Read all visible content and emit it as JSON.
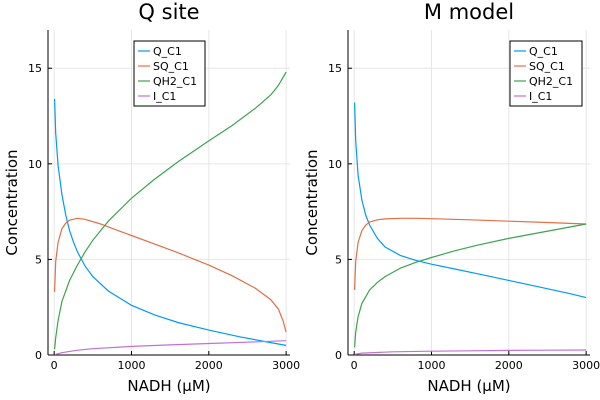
{
  "chart_data": [
    {
      "type": "line",
      "title": "Q site",
      "xlabel": "NADH (μM)",
      "ylabel": "Concentration",
      "xlim": [
        -80,
        3050
      ],
      "ylim": [
        0,
        17
      ],
      "xticks": [
        0,
        1000,
        2000,
        3000
      ],
      "yticks": [
        0,
        5,
        10,
        15
      ],
      "grid": true,
      "legend_position": "top-right",
      "series": [
        {
          "name": "Q_C1",
          "color": "#009af9",
          "x": [
            5,
            20,
            50,
            100,
            150,
            200,
            250,
            300,
            400,
            500,
            700,
            1000,
            1300,
            1600,
            2000,
            2400,
            2800,
            3000
          ],
          "y": [
            13.4,
            11.6,
            9.9,
            8.4,
            7.3,
            6.5,
            5.9,
            5.4,
            4.65,
            4.1,
            3.35,
            2.6,
            2.1,
            1.7,
            1.3,
            0.95,
            0.65,
            0.5
          ]
        },
        {
          "name": "SQ_C1",
          "color": "#e26f46",
          "x": [
            5,
            20,
            50,
            100,
            150,
            200,
            300,
            400,
            600,
            800,
            1000,
            1300,
            1600,
            2000,
            2300,
            2600,
            2800,
            2900,
            2960,
            3000
          ],
          "y": [
            3.3,
            4.9,
            5.9,
            6.6,
            6.9,
            7.05,
            7.15,
            7.1,
            6.85,
            6.55,
            6.25,
            5.8,
            5.35,
            4.7,
            4.15,
            3.5,
            2.9,
            2.4,
            1.8,
            1.2
          ]
        },
        {
          "name": "QH2_C1",
          "color": "#3da44d",
          "x": [
            5,
            20,
            50,
            100,
            200,
            300,
            400,
            500,
            700,
            1000,
            1300,
            1600,
            2000,
            2300,
            2600,
            2800,
            2900,
            3000
          ],
          "y": [
            0.3,
            0.9,
            1.8,
            2.8,
            3.9,
            4.7,
            5.4,
            6.0,
            7.0,
            8.2,
            9.2,
            10.1,
            11.2,
            12.0,
            12.9,
            13.6,
            14.1,
            14.8
          ]
        },
        {
          "name": "I_C1",
          "color": "#c271d2",
          "x": [
            5,
            100,
            300,
            500,
            1000,
            1500,
            2000,
            2500,
            3000
          ],
          "y": [
            0.02,
            0.12,
            0.25,
            0.33,
            0.45,
            0.53,
            0.6,
            0.67,
            0.75
          ]
        }
      ]
    },
    {
      "type": "line",
      "title": "M model",
      "xlabel": "NADH (μM)",
      "ylabel": "Concentration",
      "xlim": [
        -80,
        3050
      ],
      "ylim": [
        0,
        17
      ],
      "xticks": [
        0,
        1000,
        2000,
        3000
      ],
      "yticks": [
        0,
        5,
        10,
        15
      ],
      "grid": true,
      "legend_position": "top-right",
      "series": [
        {
          "name": "Q_C1",
          "color": "#009af9",
          "x": [
            5,
            20,
            50,
            100,
            150,
            200,
            300,
            400,
            600,
            800,
            1000,
            1300,
            1600,
            2000,
            2400,
            2800,
            3000
          ],
          "y": [
            13.2,
            11.2,
            9.4,
            8.1,
            7.3,
            6.8,
            6.1,
            5.65,
            5.2,
            4.95,
            4.75,
            4.5,
            4.25,
            3.9,
            3.55,
            3.2,
            3.0
          ]
        },
        {
          "name": "SQ_C1",
          "color": "#e26f46",
          "x": [
            5,
            20,
            50,
            100,
            150,
            200,
            300,
            400,
            600,
            800,
            1000,
            1500,
            2000,
            2500,
            3000
          ],
          "y": [
            3.4,
            4.9,
            5.9,
            6.5,
            6.8,
            6.95,
            7.07,
            7.12,
            7.15,
            7.15,
            7.13,
            7.07,
            7.0,
            6.93,
            6.85
          ]
        },
        {
          "name": "QH2_C1",
          "color": "#3da44d",
          "x": [
            5,
            20,
            50,
            100,
            200,
            300,
            400,
            600,
            800,
            1000,
            1300,
            1600,
            2000,
            2400,
            2800,
            3000
          ],
          "y": [
            0.4,
            1.2,
            2.0,
            2.7,
            3.4,
            3.8,
            4.1,
            4.55,
            4.85,
            5.1,
            5.45,
            5.75,
            6.1,
            6.4,
            6.7,
            6.85
          ]
        },
        {
          "name": "I_C1",
          "color": "#c271d2",
          "x": [
            5,
            100,
            500,
            1000,
            1500,
            2000,
            2500,
            3000
          ],
          "y": [
            0.03,
            0.1,
            0.17,
            0.2,
            0.22,
            0.24,
            0.25,
            0.26
          ]
        }
      ]
    }
  ]
}
